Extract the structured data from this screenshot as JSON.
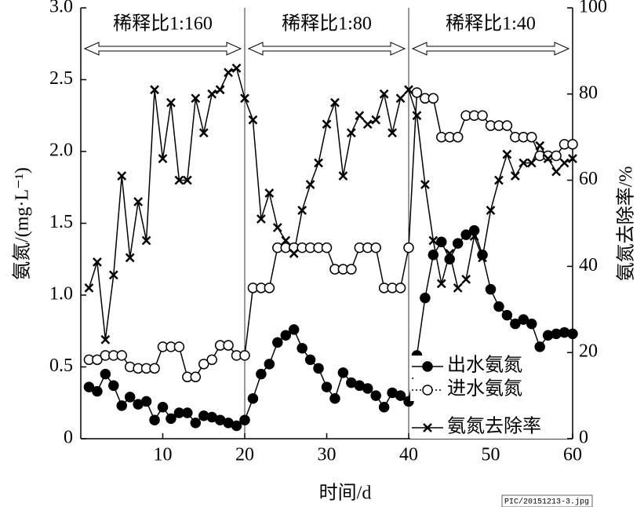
{
  "chart_data": {
    "type": "line",
    "xlabel": "时间/d",
    "ylabel": "氨氮/(mg·L⁻¹)",
    "y2label": "氨氮去除率/%",
    "x": [
      1,
      2,
      3,
      4,
      5,
      6,
      7,
      8,
      9,
      10,
      11,
      12,
      13,
      14,
      15,
      16,
      17,
      18,
      19,
      20,
      21,
      22,
      23,
      24,
      25,
      26,
      27,
      28,
      29,
      30,
      31,
      32,
      33,
      34,
      35,
      36,
      37,
      38,
      39,
      40,
      41,
      42,
      43,
      44,
      45,
      46,
      47,
      48,
      49,
      50,
      51,
      52,
      53,
      54,
      55,
      56,
      57,
      58,
      59,
      60
    ],
    "xlim": [
      0,
      60
    ],
    "xticks": [
      10,
      20,
      30,
      40,
      50,
      60
    ],
    "ylim": [
      0,
      3
    ],
    "yticks": [
      0,
      0.5,
      {
        "value": 1,
        "label": "1.0"
      },
      1.5,
      {
        "value": 2,
        "label": "2.0"
      },
      2.5,
      {
        "value": 3,
        "label": "3.0"
      }
    ],
    "y2lim": [
      0,
      100
    ],
    "y2ticks": [
      0,
      20,
      40,
      60,
      80,
      100
    ],
    "dividers": [
      20,
      40
    ],
    "phases": [
      {
        "label": "稀释比1:160",
        "start": 0,
        "end": 20
      },
      {
        "label": "稀释比1:80",
        "start": 20,
        "end": 40
      },
      {
        "label": "稀释比1:40",
        "start": 40,
        "end": 60
      }
    ],
    "legend": "lower right",
    "series": [
      {
        "name": "出水氨氮",
        "color": "#000000",
        "marker": "filled-circle",
        "values": [
          0.36,
          0.33,
          0.45,
          0.37,
          0.23,
          0.29,
          0.24,
          0.26,
          0.13,
          0.22,
          0.14,
          0.18,
          0.18,
          0.11,
          0.16,
          0.15,
          0.13,
          0.11,
          0.09,
          0.13,
          0.28,
          0.45,
          0.52,
          0.67,
          0.72,
          0.76,
          0.63,
          0.55,
          0.49,
          0.36,
          0.28,
          0.46,
          0.39,
          0.37,
          0.35,
          0.3,
          0.22,
          0.32,
          0.3,
          0.26,
          0.58,
          0.98,
          1.28,
          1.37,
          1.25,
          1.36,
          1.42,
          1.45,
          1.28,
          1.04,
          0.92,
          0.86,
          0.8,
          0.83,
          0.8,
          0.64,
          0.72,
          0.73,
          0.74,
          0.73
        ]
      },
      {
        "name": "进水氨氮",
        "color": "#000000",
        "marker": "open-circle",
        "values": [
          0.55,
          0.55,
          0.58,
          0.58,
          0.58,
          0.5,
          0.49,
          0.49,
          0.49,
          0.64,
          0.64,
          0.64,
          0.43,
          0.43,
          0.52,
          0.55,
          0.65,
          0.65,
          0.58,
          0.58,
          1.05,
          1.05,
          1.05,
          1.33,
          1.33,
          1.33,
          1.33,
          1.33,
          1.33,
          1.33,
          1.18,
          1.18,
          1.18,
          1.33,
          1.33,
          1.33,
          1.05,
          1.05,
          1.05,
          1.33,
          2.41,
          2.37,
          2.37,
          2.1,
          2.1,
          2.1,
          2.25,
          2.25,
          2.25,
          2.18,
          2.18,
          2.18,
          2.1,
          2.1,
          2.1,
          1.97,
          1.97,
          1.97,
          2.05,
          2.05
        ]
      },
      {
        "name": "氨氮去除率",
        "color": "#000000",
        "marker": "x",
        "axis": "y2",
        "values": [
          35,
          41,
          23,
          38,
          61,
          42,
          55,
          46,
          81,
          65,
          78,
          60,
          60,
          79,
          71,
          80,
          81,
          85,
          86,
          79,
          74,
          51,
          57,
          49,
          46,
          43,
          53,
          59,
          64,
          73,
          78,
          61,
          71,
          75,
          73,
          74,
          80,
          71,
          79,
          81,
          75,
          59,
          46,
          36,
          43,
          35,
          37,
          47,
          42,
          53,
          60,
          66,
          61,
          64,
          64,
          68,
          65,
          62,
          64,
          65
        ]
      }
    ]
  },
  "watermark": "PIC/20151213-3.jpg"
}
